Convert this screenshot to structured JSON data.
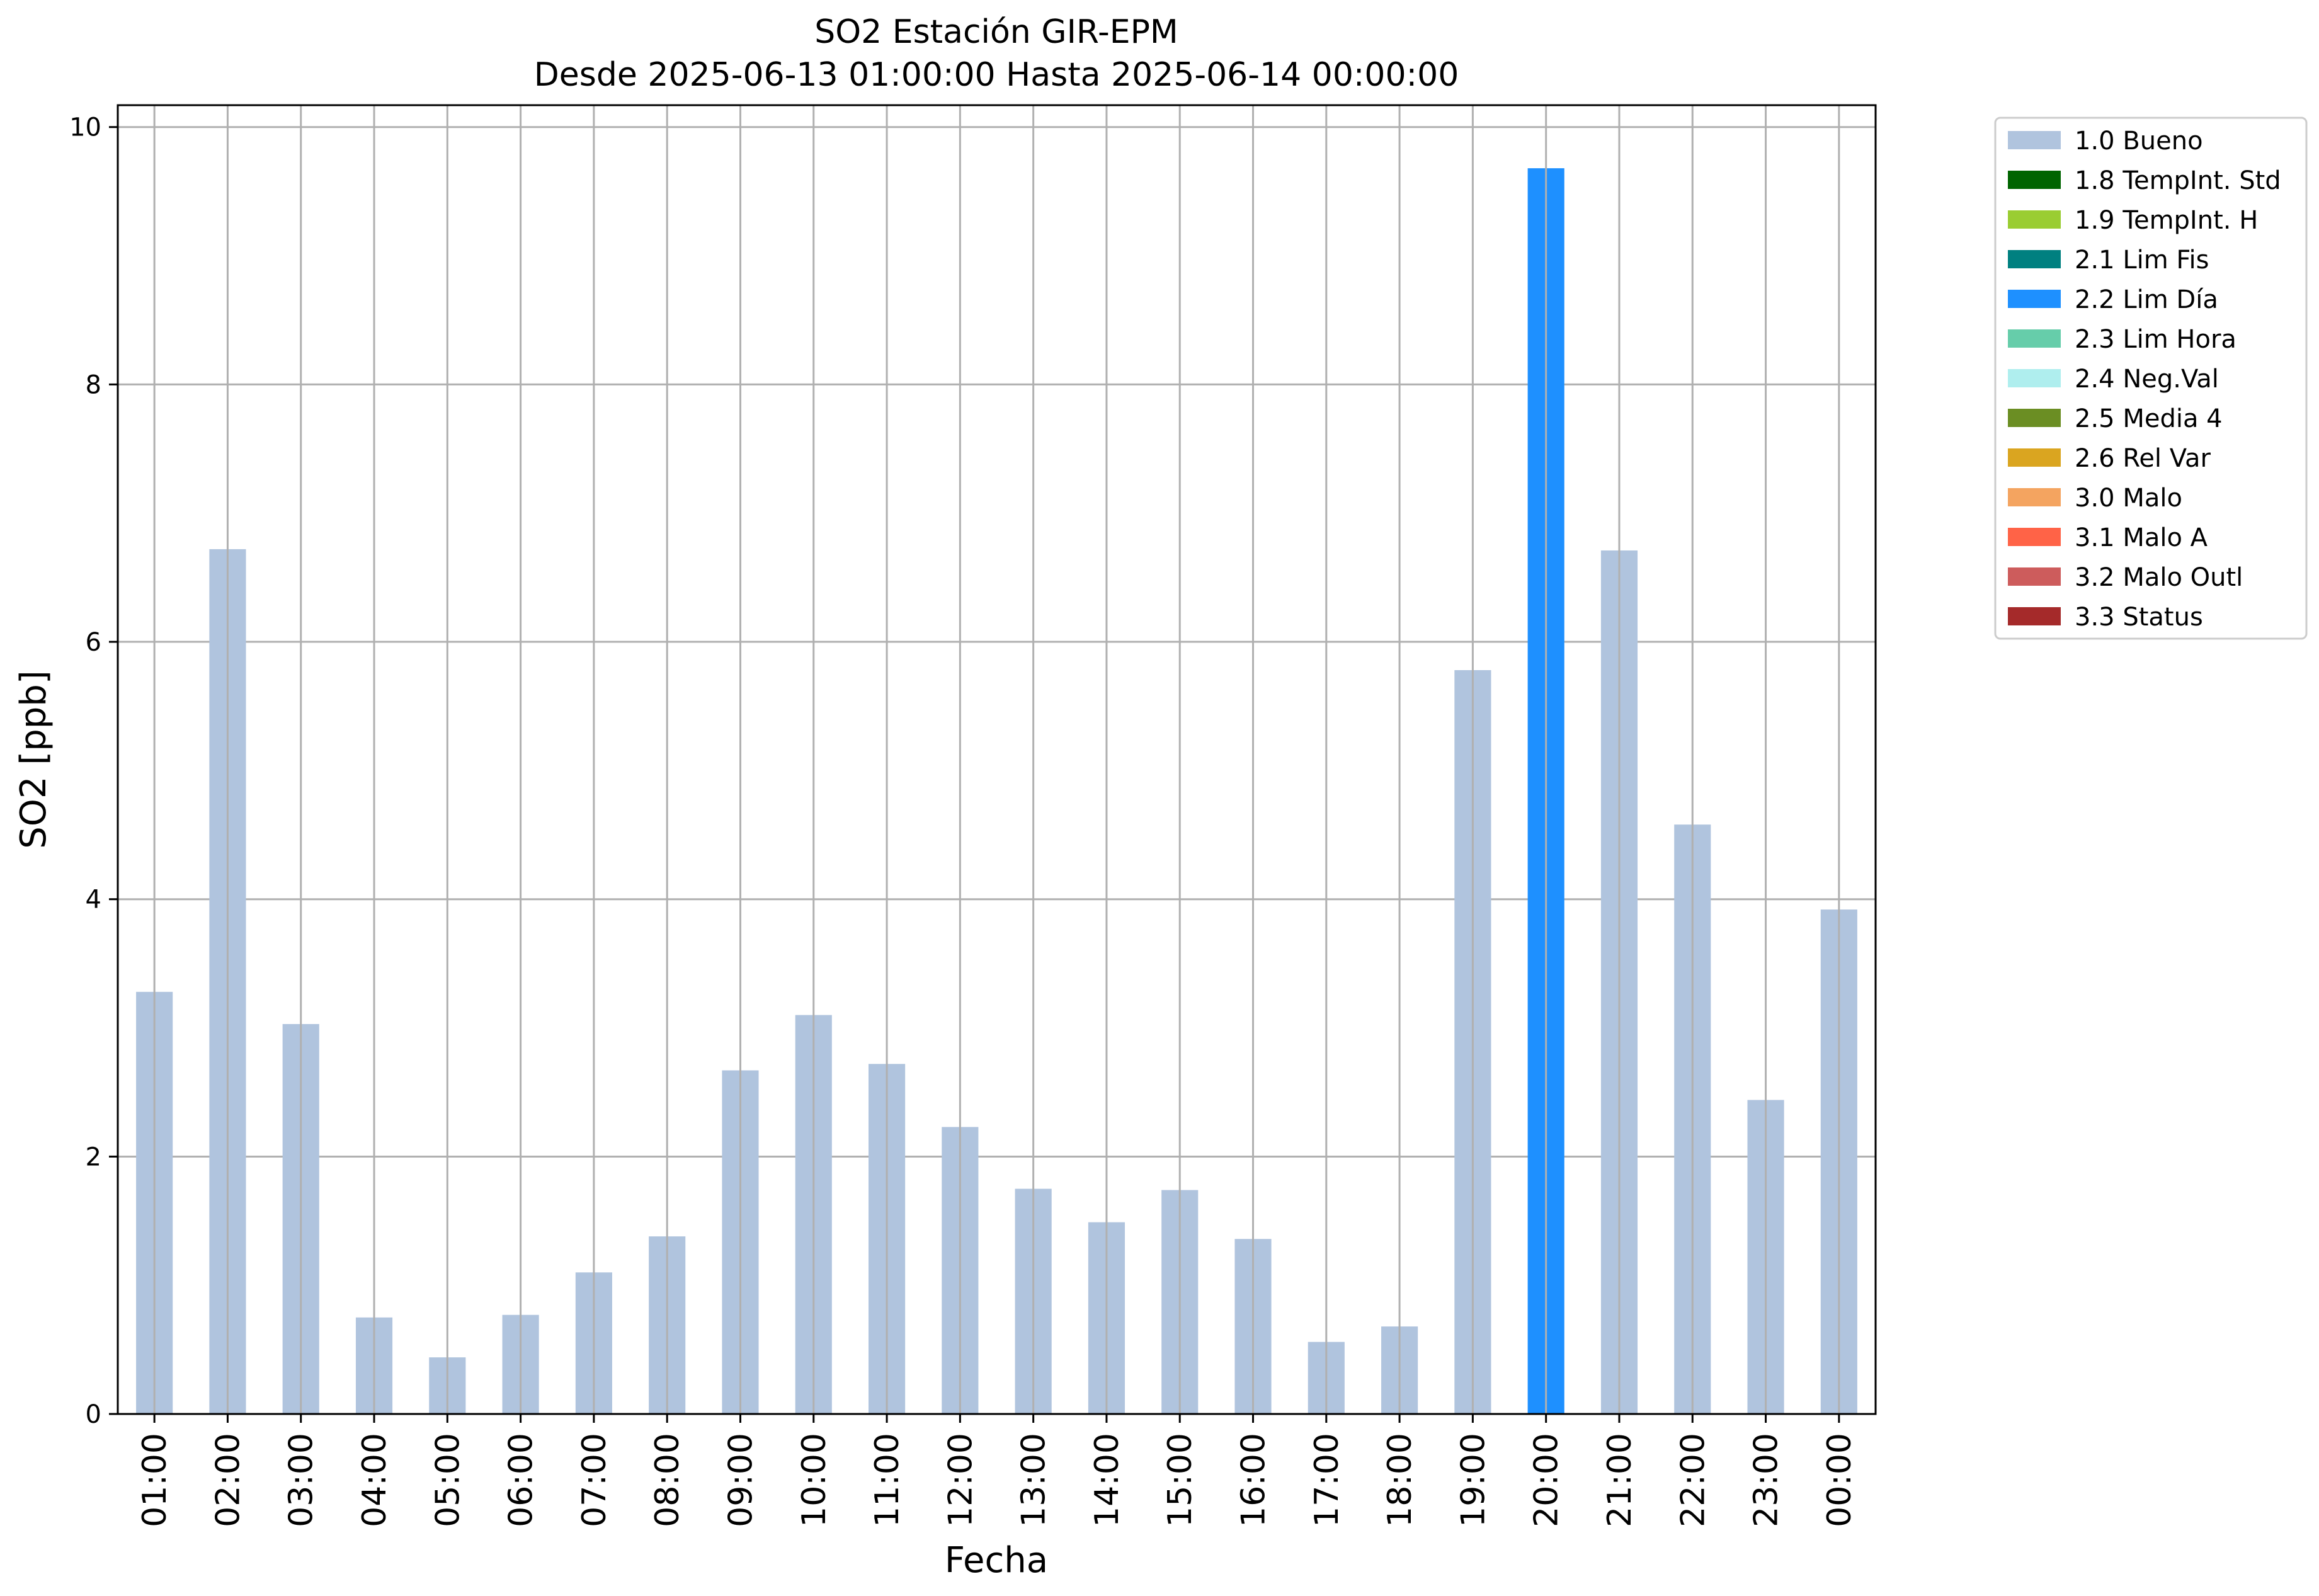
{
  "chart_data": {
    "type": "bar",
    "title": "SO2 Estación GIR-EPM",
    "subtitle": "Desde 2025-06-13 01:00:00 Hasta 2025-06-14 00:00:00",
    "xlabel": "Fecha",
    "ylabel": "SO2 [ppb]",
    "ylim": [
      0,
      10.17
    ],
    "yticks": [
      0,
      2,
      4,
      6,
      8,
      10
    ],
    "grid": true,
    "legend_position": "outside-top-right",
    "categories": [
      "01:00",
      "02:00",
      "03:00",
      "04:00",
      "05:00",
      "06:00",
      "07:00",
      "08:00",
      "09:00",
      "10:00",
      "11:00",
      "12:00",
      "13:00",
      "14:00",
      "15:00",
      "16:00",
      "17:00",
      "18:00",
      "19:00",
      "20:00",
      "21:00",
      "22:00",
      "23:00",
      "00:00"
    ],
    "values": [
      3.28,
      6.72,
      3.03,
      0.75,
      0.44,
      0.77,
      1.1,
      1.38,
      2.67,
      3.1,
      2.72,
      2.23,
      1.75,
      1.49,
      1.74,
      1.36,
      0.56,
      0.68,
      5.78,
      9.68,
      6.71,
      4.58,
      2.44,
      3.92
    ],
    "flags": [
      "1.0 Bueno",
      "1.0 Bueno",
      "1.0 Bueno",
      "1.0 Bueno",
      "1.0 Bueno",
      "1.0 Bueno",
      "1.0 Bueno",
      "1.0 Bueno",
      "1.0 Bueno",
      "1.0 Bueno",
      "1.0 Bueno",
      "1.0 Bueno",
      "1.0 Bueno",
      "1.0 Bueno",
      "1.0 Bueno",
      "1.0 Bueno",
      "1.0 Bueno",
      "1.0 Bueno",
      "1.0 Bueno",
      "2.2 Lim Día",
      "1.0 Bueno",
      "1.0 Bueno",
      "1.0 Bueno",
      "1.0 Bueno"
    ],
    "legend": [
      {
        "label": "1.0 Bueno",
        "color": "#b0c4de"
      },
      {
        "label": "1.8 TempInt. Std",
        "color": "#006400"
      },
      {
        "label": "1.9 TempInt. H",
        "color": "#9acd32"
      },
      {
        "label": "2.1 Lim Fis",
        "color": "#008080"
      },
      {
        "label": "2.2 Lim Día",
        "color": "#1e90ff"
      },
      {
        "label": "2.3 Lim Hora",
        "color": "#66cdaa"
      },
      {
        "label": "2.4 Neg.Val",
        "color": "#afeeee"
      },
      {
        "label": "2.5 Media 4",
        "color": "#6b8e23"
      },
      {
        "label": "2.6 Rel Var",
        "color": "#daa520"
      },
      {
        "label": "3.0 Malo",
        "color": "#f4a460"
      },
      {
        "label": "3.1 Malo A",
        "color": "#ff6347"
      },
      {
        "label": "3.2 Malo Outl",
        "color": "#cd5c5c"
      },
      {
        "label": "3.3 Status",
        "color": "#a52a2a"
      }
    ]
  }
}
